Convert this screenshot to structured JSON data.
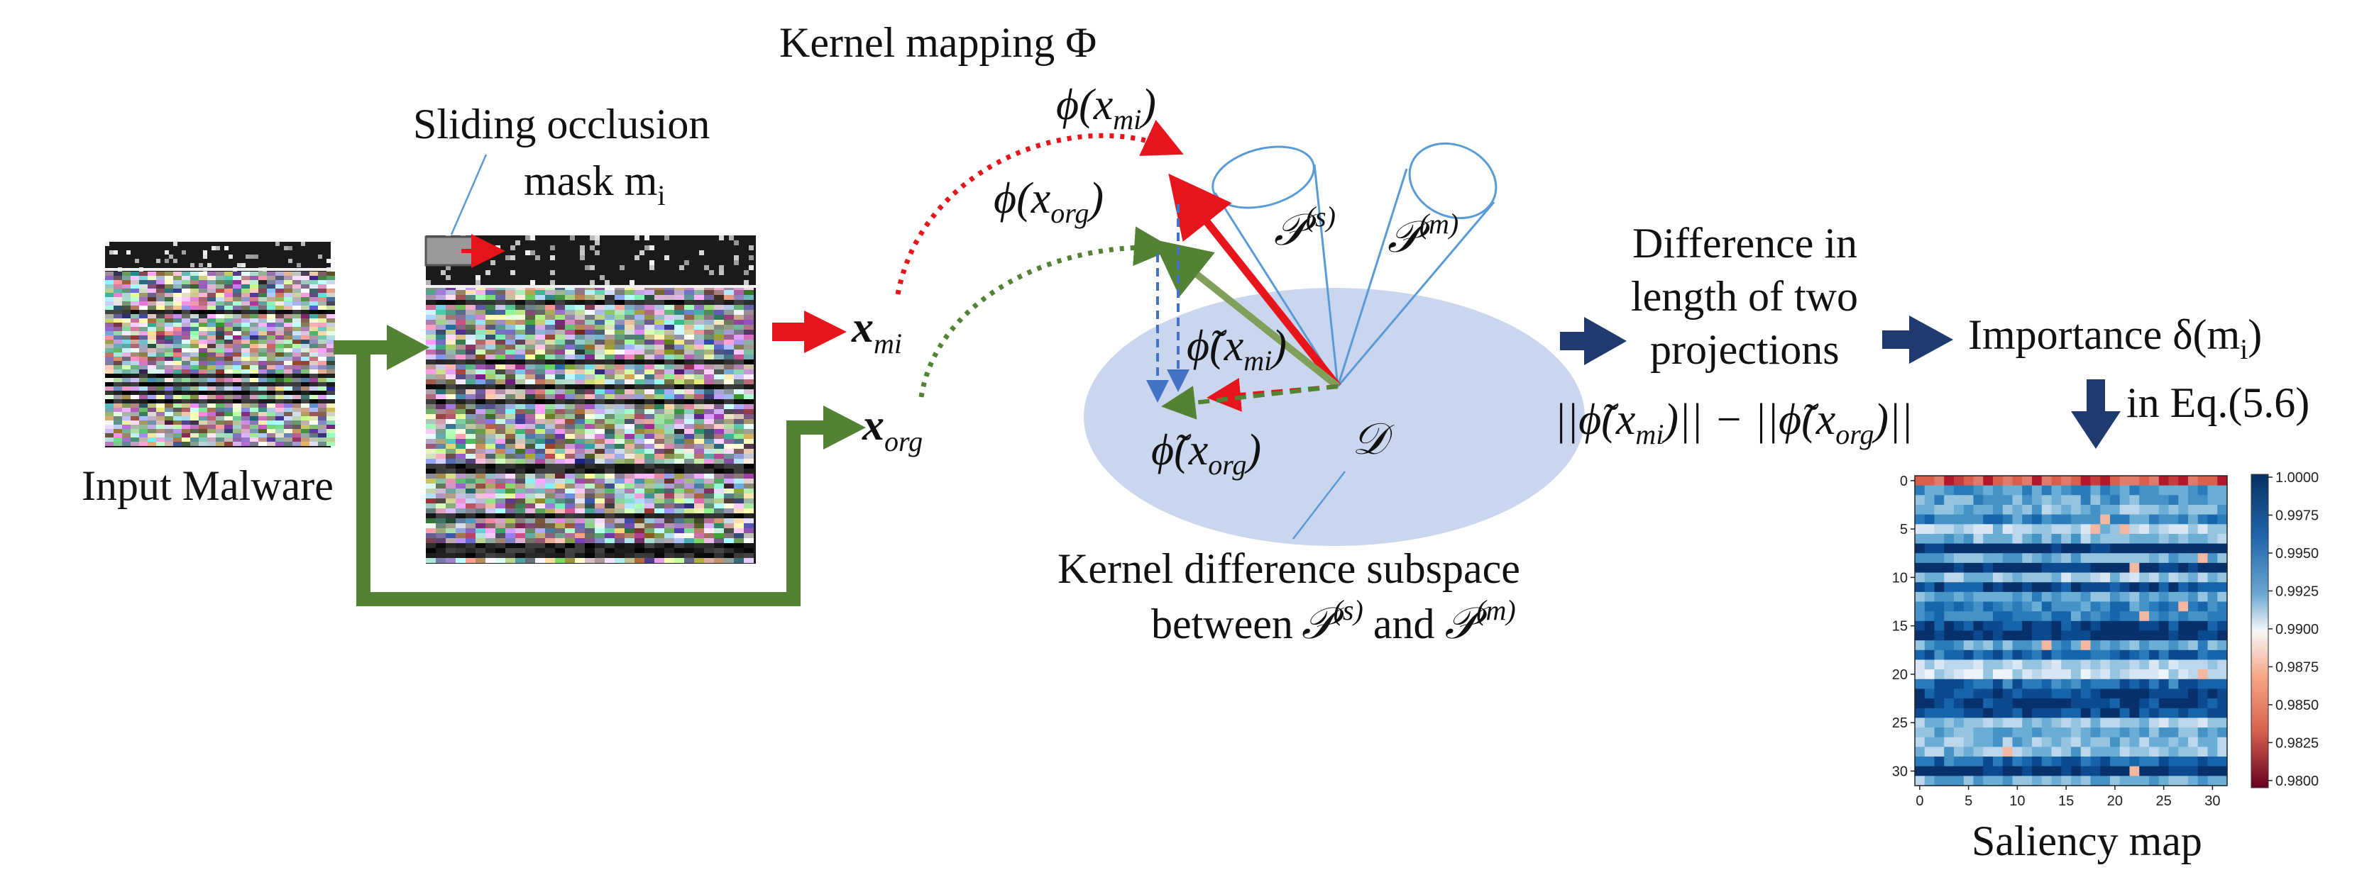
{
  "labels": {
    "input_malware": "Input Malware",
    "sliding_mask_line1": "Sliding occlusion",
    "sliding_mask_line2": "mask m",
    "sliding_mask_sub": "i",
    "kernel_mapping": "Kernel mapping Φ",
    "phi_xmi": "ϕ(x",
    "phi_xmi_sub": "mi",
    "phi_xorg": "ϕ(x",
    "phi_xorg_sub": "org",
    "x_mi": "x",
    "x_mi_sub": "mi",
    "x_org": "x",
    "x_org_sub": "org",
    "p_s": "𝒫",
    "p_s_sup": "(s)",
    "p_m": "𝒫",
    "p_m_sup": "(m)",
    "phitilde_xmi": "ϕ̃(x",
    "phitilde_xmi_sub": "mi",
    "phitilde_xorg": "ϕ̃(x",
    "phitilde_xorg_sub": "org",
    "D": "𝒟",
    "kernel_diff_line1": "Kernel difference subspace",
    "kernel_diff_line2": "between",
    "kernel_diff_and": "and",
    "difference_line1": "Difference in",
    "difference_line2": "length of two",
    "difference_line3": "projections",
    "norm_formula": "||ϕ̃(x",
    "norm_formula_sub1": "mi",
    "norm_formula_mid": ")|| − ||ϕ̃(x",
    "norm_formula_sub2": "org",
    "norm_formula_end": ")||",
    "importance": "Importance δ(m",
    "importance_sub": "i",
    "in_eq": "in Eq.(5.6)",
    "saliency_map": "Saliency map"
  },
  "saliency": {
    "y_ticks": [
      "0",
      "5",
      "10",
      "15",
      "20",
      "25",
      "30"
    ],
    "x_ticks": [
      "0",
      "5",
      "10",
      "15",
      "20",
      "25",
      "30"
    ],
    "colorbar_ticks": [
      "1.0000",
      "0.9975",
      "0.9950",
      "0.9925",
      "0.9900",
      "0.9875",
      "0.9850",
      "0.9825",
      "0.9800"
    ]
  },
  "colors": {
    "red_arrow": "#e8141b",
    "green_arrow": "#548235",
    "navy_arrow": "#1f3a6e",
    "blue_dash": "#4472c4",
    "ellipse_fill": "#c9d6ee",
    "cone_stroke": "#5b9bd5"
  }
}
